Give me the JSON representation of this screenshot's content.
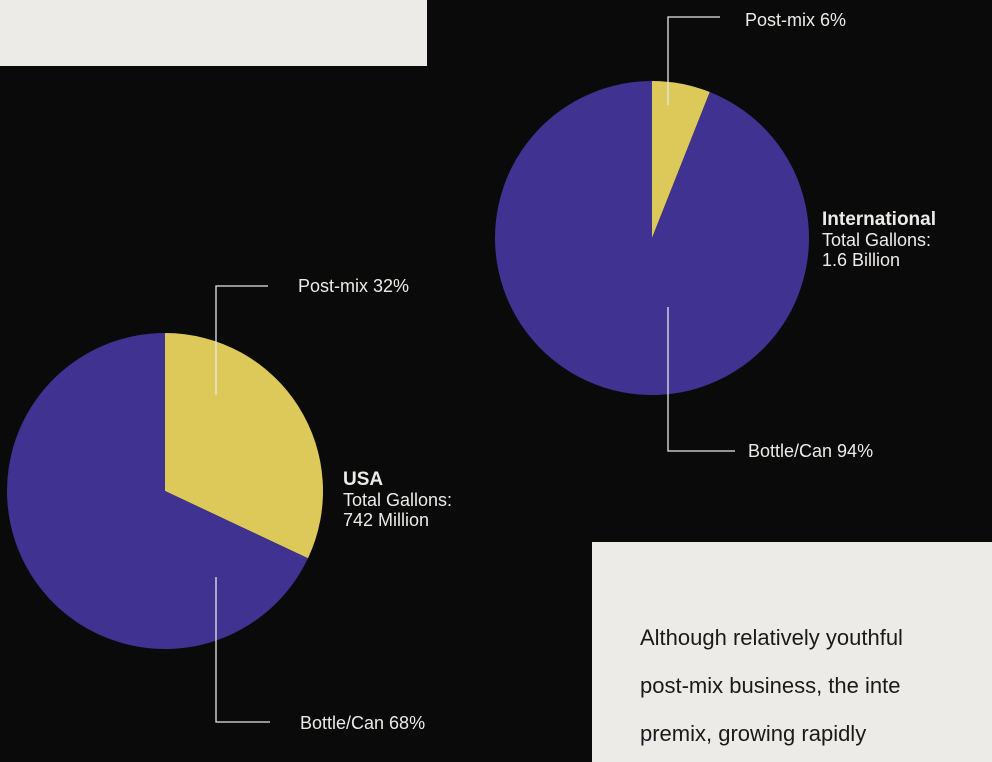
{
  "chart_data": [
    {
      "type": "pie",
      "title": "International",
      "subtitle_lines": [
        "Total Gallons:",
        "1.6 Billion"
      ],
      "slices": [
        {
          "label": "Post-mix",
          "value": 6,
          "display": "Post-mix 6%",
          "color": "#ddc95a"
        },
        {
          "label": "Bottle/Can",
          "value": 94,
          "display": "Bottle/Can 94%",
          "color": "#3f3291"
        }
      ]
    },
    {
      "type": "pie",
      "title": "USA",
      "subtitle_lines": [
        "Total Gallons:",
        "742 Million"
      ],
      "slices": [
        {
          "label": "Post-mix",
          "value": 32,
          "display": "Post-mix 32%",
          "color": "#ddc95a"
        },
        {
          "label": "Bottle/Can",
          "value": 68,
          "display": "Bottle/Can 68%",
          "color": "#3f3291"
        }
      ]
    }
  ],
  "body_text": {
    "lines": [
      "Although relatively youthful",
      "post-mix business, the inte",
      "premix, growing rapidly"
    ]
  },
  "colors": {
    "background": "#0a0a0b",
    "panel": "#ecebe8",
    "text_light": "#ecebe8"
  }
}
